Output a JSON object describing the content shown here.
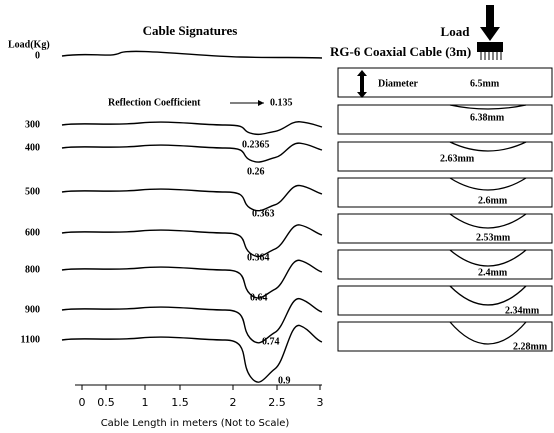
{
  "left": {
    "title": "Cable Signatures",
    "y_label": "Load(Kg)",
    "loads": [
      0,
      300,
      400,
      500,
      600,
      800,
      900,
      1100
    ],
    "annotation": "Reflection Coefficient",
    "coefficients": [
      "0.135",
      "0.2365",
      "0.26",
      "0.363",
      "0.364",
      "0.64",
      "0.74",
      "0.9"
    ],
    "x_ticks": [
      0,
      0.5,
      1,
      1.5,
      2,
      2.5,
      3
    ],
    "x_label": "Cable Length in meters  (Not to Scale)"
  },
  "right": {
    "title": "RG-6 Coaxial Cable (3m)",
    "load_label": "Load",
    "diameter_label": "Diameter",
    "diameters": [
      "6.5mm",
      "6.38mm",
      "2.63mm",
      "2.6mm",
      "2.53mm",
      "2.4mm",
      "2.34mm",
      "2.28mm"
    ]
  }
}
